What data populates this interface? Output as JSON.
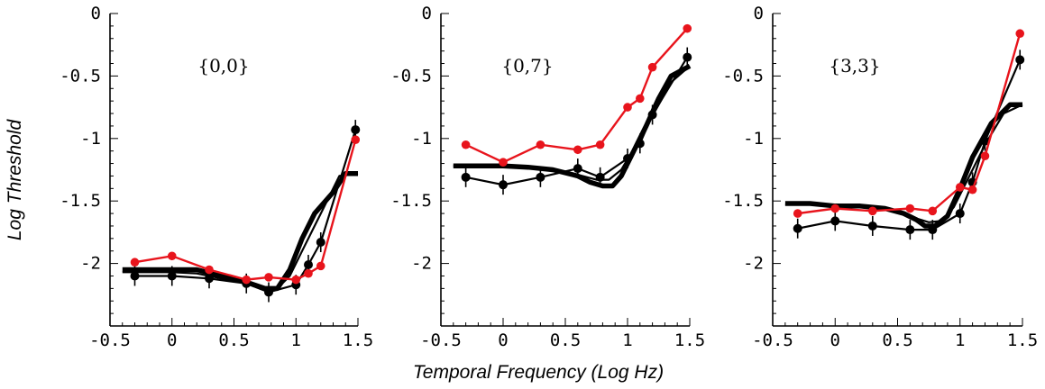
{
  "chart_data": {
    "type": "line",
    "ylabel": "Log Threshold",
    "xlabel": "Temporal Frequency (Log Hz)",
    "xlim": [
      -0.5,
      1.5
    ],
    "ylim": [
      -2.5,
      0
    ],
    "xticks": [
      {
        "value": -0.5,
        "label": "-0.5"
      },
      {
        "value": 0,
        "label": "0"
      },
      {
        "value": 0.5,
        "label": "0.5"
      },
      {
        "value": 1,
        "label": "1"
      },
      {
        "value": 1.5,
        "label": "1.5"
      }
    ],
    "yticks": [
      {
        "value": 0,
        "label": "0"
      },
      {
        "value": -0.5,
        "label": "-0.5"
      },
      {
        "value": -1,
        "label": "-1"
      },
      {
        "value": -1.5,
        "label": "-1.5"
      },
      {
        "value": -2,
        "label": "-2"
      }
    ],
    "colors": {
      "red": "#e8141c",
      "black": "#000000"
    },
    "panels": [
      {
        "label": "{0,0}",
        "red_data": {
          "x": [
            -0.3,
            0.0,
            0.3,
            0.6,
            0.78,
            1.0,
            1.1,
            1.2,
            1.48
          ],
          "y": [
            -1.99,
            -1.94,
            -2.05,
            -2.13,
            -2.11,
            -2.13,
            -2.08,
            -2.02,
            -1.01
          ]
        },
        "black_data": {
          "x": [
            -0.3,
            0.0,
            0.3,
            0.6,
            0.78,
            1.0,
            1.1,
            1.2,
            1.48
          ],
          "y": [
            -2.1,
            -2.1,
            -2.12,
            -2.16,
            -2.23,
            -2.17,
            -2.01,
            -1.83,
            -0.93
          ]
        },
        "model_fit": {
          "x": [
            -0.4,
            -0.2,
            0.0,
            0.2,
            0.4,
            0.6,
            0.75,
            0.85,
            0.95,
            1.05,
            1.15,
            1.3,
            1.4,
            1.5
          ],
          "y": [
            -2.05,
            -2.05,
            -2.05,
            -2.05,
            -2.1,
            -2.15,
            -2.2,
            -2.2,
            -2.05,
            -1.8,
            -1.6,
            -1.43,
            -1.28,
            -1.28
          ]
        },
        "thin_fit": {
          "x": [
            -0.4,
            -0.2,
            0.0,
            0.2,
            0.4,
            0.6,
            0.75,
            0.85,
            0.95,
            1.05,
            1.2,
            1.35,
            1.5
          ],
          "y": [
            -2.07,
            -2.07,
            -2.07,
            -2.08,
            -2.12,
            -2.15,
            -2.2,
            -2.2,
            -2.1,
            -1.9,
            -1.6,
            -1.3,
            -1.28
          ]
        }
      },
      {
        "label": "{0,7}",
        "red_data": {
          "x": [
            -0.3,
            0.0,
            0.3,
            0.6,
            0.78,
            1.0,
            1.1,
            1.2,
            1.48
          ],
          "y": [
            -1.05,
            -1.19,
            -1.05,
            -1.09,
            -1.05,
            -0.75,
            -0.68,
            -0.43,
            -0.12
          ]
        },
        "black_data": {
          "x": [
            -0.3,
            0.0,
            0.3,
            0.6,
            0.78,
            1.0,
            1.1,
            1.2,
            1.48
          ],
          "y": [
            -1.31,
            -1.37,
            -1.31,
            -1.24,
            -1.31,
            -1.16,
            -1.04,
            -0.81,
            -0.35
          ]
        },
        "model_fit": {
          "x": [
            -0.4,
            -0.2,
            0.0,
            0.2,
            0.4,
            0.6,
            0.7,
            0.8,
            0.88,
            0.95,
            1.05,
            1.15,
            1.25,
            1.35,
            1.5
          ],
          "y": [
            -1.22,
            -1.22,
            -1.22,
            -1.23,
            -1.25,
            -1.3,
            -1.35,
            -1.38,
            -1.38,
            -1.3,
            -1.1,
            -0.9,
            -0.68,
            -0.5,
            -0.42
          ]
        },
        "thin_fit": {
          "x": [
            -0.4,
            -0.2,
            0.0,
            0.2,
            0.4,
            0.6,
            0.75,
            0.85,
            0.95,
            1.05,
            1.2,
            1.35,
            1.5
          ],
          "y": [
            -1.22,
            -1.22,
            -1.22,
            -1.23,
            -1.25,
            -1.29,
            -1.33,
            -1.33,
            -1.25,
            -1.08,
            -0.82,
            -0.55,
            -0.42
          ]
        }
      },
      {
        "label": "{3,3}",
        "red_data": {
          "x": [
            -0.3,
            0.0,
            0.3,
            0.6,
            0.78,
            1.0,
            1.1,
            1.2,
            1.48
          ],
          "y": [
            -1.6,
            -1.56,
            -1.58,
            -1.56,
            -1.58,
            -1.39,
            -1.41,
            -1.14,
            -0.16
          ]
        },
        "black_data": {
          "x": [
            -0.3,
            0.0,
            0.3,
            0.6,
            0.78,
            1.0,
            1.1,
            1.2,
            1.48
          ],
          "y": [
            -1.72,
            -1.66,
            -1.7,
            -1.73,
            -1.73,
            -1.6,
            -1.35,
            -1.02,
            -0.37
          ]
        },
        "model_fit": {
          "x": [
            -0.4,
            -0.2,
            0.0,
            0.2,
            0.4,
            0.55,
            0.65,
            0.72,
            0.8,
            0.9,
            1.0,
            1.1,
            1.25,
            1.4,
            1.5
          ],
          "y": [
            -1.52,
            -1.52,
            -1.54,
            -1.54,
            -1.56,
            -1.6,
            -1.65,
            -1.7,
            -1.7,
            -1.62,
            -1.4,
            -1.15,
            -0.88,
            -0.73,
            -0.73
          ]
        },
        "thin_fit": {
          "x": [
            -0.4,
            -0.2,
            0.0,
            0.2,
            0.4,
            0.55,
            0.65,
            0.75,
            0.85,
            0.95,
            1.05,
            1.2,
            1.35,
            1.5
          ],
          "y": [
            -1.53,
            -1.53,
            -1.54,
            -1.55,
            -1.57,
            -1.6,
            -1.64,
            -1.67,
            -1.66,
            -1.55,
            -1.35,
            -1.05,
            -0.8,
            -0.73
          ]
        }
      }
    ]
  }
}
